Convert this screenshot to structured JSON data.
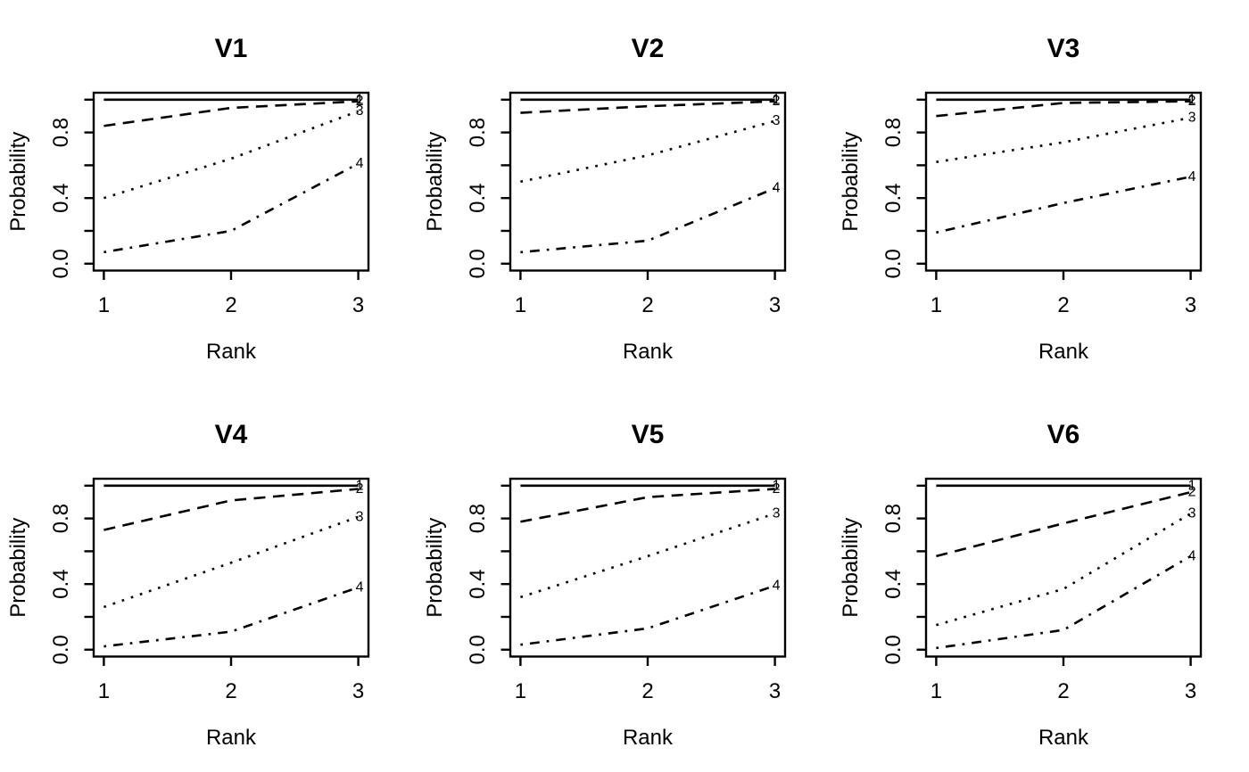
{
  "figure": {
    "background": "#ffffff",
    "line_color": "#000000",
    "grid_rows": 2,
    "grid_cols": 3
  },
  "chart_data": [
    {
      "type": "line",
      "title": "V1",
      "xlabel": "Rank",
      "ylabel": "Probability",
      "x": [
        1,
        2,
        3
      ],
      "xlim": [
        1,
        3
      ],
      "ylim": [
        0,
        1
      ],
      "xtick_labels": [
        "1",
        "2",
        "3"
      ],
      "yticks_all": [
        0.0,
        0.2,
        0.4,
        0.6,
        0.8,
        1.0
      ],
      "ytick_labeled_values": [
        0.0,
        0.4,
        0.8
      ],
      "ytick_labels": [
        "0.0",
        "0.4",
        "0.8"
      ],
      "grid": false,
      "legend": "none",
      "series": [
        {
          "name": "1",
          "linetype": "solid",
          "values": [
            1.0,
            1.0,
            1.0
          ]
        },
        {
          "name": "2",
          "linetype": "dashed",
          "values": [
            0.84,
            0.95,
            0.99
          ]
        },
        {
          "name": "3",
          "linetype": "dotted",
          "values": [
            0.4,
            0.64,
            0.93
          ]
        },
        {
          "name": "4",
          "linetype": "dashdot",
          "values": [
            0.07,
            0.2,
            0.61
          ]
        }
      ]
    },
    {
      "type": "line",
      "title": "V2",
      "xlabel": "Rank",
      "ylabel": "Probability",
      "x": [
        1,
        2,
        3
      ],
      "xlim": [
        1,
        3
      ],
      "ylim": [
        0,
        1
      ],
      "xtick_labels": [
        "1",
        "2",
        "3"
      ],
      "yticks_all": [
        0.0,
        0.2,
        0.4,
        0.6,
        0.8,
        1.0
      ],
      "ytick_labeled_values": [
        0.0,
        0.4,
        0.8
      ],
      "ytick_labels": [
        "0.0",
        "0.4",
        "0.8"
      ],
      "grid": false,
      "legend": "none",
      "series": [
        {
          "name": "1",
          "linetype": "solid",
          "values": [
            1.0,
            1.0,
            1.0
          ]
        },
        {
          "name": "2",
          "linetype": "dashed",
          "values": [
            0.92,
            0.96,
            0.99
          ]
        },
        {
          "name": "3",
          "linetype": "dotted",
          "values": [
            0.5,
            0.66,
            0.87
          ]
        },
        {
          "name": "4",
          "linetype": "dashdot",
          "values": [
            0.07,
            0.14,
            0.46
          ]
        }
      ]
    },
    {
      "type": "line",
      "title": "V3",
      "xlabel": "Rank",
      "ylabel": "Probability",
      "x": [
        1,
        2,
        3
      ],
      "xlim": [
        1,
        3
      ],
      "ylim": [
        0,
        1
      ],
      "xtick_labels": [
        "1",
        "2",
        "3"
      ],
      "yticks_all": [
        0.0,
        0.2,
        0.4,
        0.6,
        0.8,
        1.0
      ],
      "ytick_labeled_values": [
        0.0,
        0.4,
        0.8
      ],
      "ytick_labels": [
        "0.0",
        "0.4",
        "0.8"
      ],
      "grid": false,
      "legend": "none",
      "series": [
        {
          "name": "1",
          "linetype": "solid",
          "values": [
            1.0,
            1.0,
            1.0
          ]
        },
        {
          "name": "2",
          "linetype": "dashed",
          "values": [
            0.9,
            0.98,
            0.99
          ]
        },
        {
          "name": "3",
          "linetype": "dotted",
          "values": [
            0.62,
            0.74,
            0.89
          ]
        },
        {
          "name": "4",
          "linetype": "dashdot",
          "values": [
            0.19,
            0.37,
            0.53
          ]
        }
      ]
    },
    {
      "type": "line",
      "title": "V4",
      "xlabel": "Rank",
      "ylabel": "Probability",
      "x": [
        1,
        2,
        3
      ],
      "xlim": [
        1,
        3
      ],
      "ylim": [
        0,
        1
      ],
      "xtick_labels": [
        "1",
        "2",
        "3"
      ],
      "yticks_all": [
        0.0,
        0.2,
        0.4,
        0.6,
        0.8,
        1.0
      ],
      "ytick_labeled_values": [
        0.0,
        0.4,
        0.8
      ],
      "ytick_labels": [
        "0.0",
        "0.4",
        "0.8"
      ],
      "grid": false,
      "legend": "none",
      "series": [
        {
          "name": "1",
          "linetype": "solid",
          "values": [
            1.0,
            1.0,
            1.0
          ]
        },
        {
          "name": "2",
          "linetype": "dashed",
          "values": [
            0.73,
            0.91,
            0.98
          ]
        },
        {
          "name": "3",
          "linetype": "dotted",
          "values": [
            0.26,
            0.53,
            0.81
          ]
        },
        {
          "name": "4",
          "linetype": "dashdot",
          "values": [
            0.02,
            0.11,
            0.38
          ]
        }
      ]
    },
    {
      "type": "line",
      "title": "V5",
      "xlabel": "Rank",
      "ylabel": "Probability",
      "x": [
        1,
        2,
        3
      ],
      "xlim": [
        1,
        3
      ],
      "ylim": [
        0,
        1
      ],
      "xtick_labels": [
        "1",
        "2",
        "3"
      ],
      "yticks_all": [
        0.0,
        0.2,
        0.4,
        0.6,
        0.8,
        1.0
      ],
      "ytick_labeled_values": [
        0.0,
        0.4,
        0.8
      ],
      "ytick_labels": [
        "0.0",
        "0.4",
        "0.8"
      ],
      "grid": false,
      "legend": "none",
      "series": [
        {
          "name": "1",
          "linetype": "solid",
          "values": [
            1.0,
            1.0,
            1.0
          ]
        },
        {
          "name": "2",
          "linetype": "dashed",
          "values": [
            0.78,
            0.93,
            0.98
          ]
        },
        {
          "name": "3",
          "linetype": "dotted",
          "values": [
            0.32,
            0.57,
            0.83
          ]
        },
        {
          "name": "4",
          "linetype": "dashdot",
          "values": [
            0.03,
            0.13,
            0.39
          ]
        }
      ]
    },
    {
      "type": "line",
      "title": "V6",
      "xlabel": "Rank",
      "ylabel": "Probability",
      "x": [
        1,
        2,
        3
      ],
      "xlim": [
        1,
        3
      ],
      "ylim": [
        0,
        1
      ],
      "xtick_labels": [
        "1",
        "2",
        "3"
      ],
      "yticks_all": [
        0.0,
        0.2,
        0.4,
        0.6,
        0.8,
        1.0
      ],
      "ytick_labeled_values": [
        0.0,
        0.4,
        0.8
      ],
      "ytick_labels": [
        "0.0",
        "0.4",
        "0.8"
      ],
      "grid": false,
      "legend": "none",
      "series": [
        {
          "name": "1",
          "linetype": "solid",
          "values": [
            1.0,
            1.0,
            1.0
          ]
        },
        {
          "name": "2",
          "linetype": "dashed",
          "values": [
            0.57,
            0.77,
            0.96
          ]
        },
        {
          "name": "3",
          "linetype": "dotted",
          "values": [
            0.15,
            0.37,
            0.83
          ]
        },
        {
          "name": "4",
          "linetype": "dashdot",
          "values": [
            0.01,
            0.12,
            0.57
          ]
        }
      ]
    }
  ]
}
